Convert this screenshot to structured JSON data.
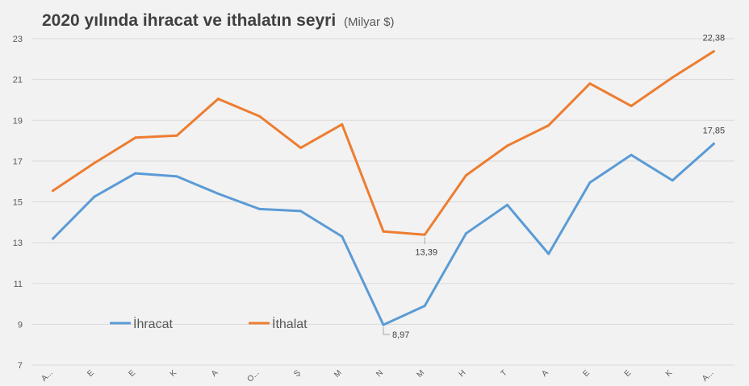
{
  "chart_data": {
    "type": "line",
    "title": "2020 yılında ihracat ve ithalatın seyri",
    "subtitle": "(Milyar $)",
    "categories": [
      "A...",
      "E",
      "E",
      "K",
      "A",
      "O...",
      "Ş",
      "M",
      "N",
      "M",
      "H",
      "T",
      "A",
      "E",
      "E",
      "K",
      "A..."
    ],
    "series": [
      {
        "name": "İhracat",
        "color": "#5b9bd5",
        "values": [
          13.2,
          15.25,
          16.4,
          16.25,
          15.4,
          14.65,
          14.55,
          13.3,
          8.97,
          9.9,
          13.45,
          14.85,
          12.45,
          15.95,
          17.3,
          16.05,
          17.85
        ]
      },
      {
        "name": "İthalat",
        "color": "#ed7d31",
        "values": [
          15.55,
          16.9,
          18.15,
          18.25,
          20.05,
          19.2,
          17.65,
          18.8,
          13.55,
          13.39,
          16.3,
          17.75,
          18.75,
          20.8,
          19.7,
          21.1,
          22.38
        ]
      }
    ],
    "data_labels": [
      {
        "series": 0,
        "index": 8,
        "text": "8,97"
      },
      {
        "series": 0,
        "index": 16,
        "text": "17,85"
      },
      {
        "series": 1,
        "index": 9,
        "text": "13,39"
      },
      {
        "series": 1,
        "index": 16,
        "text": "22,38"
      }
    ],
    "ylim": [
      7,
      23
    ],
    "yticks": [
      7,
      9,
      11,
      13,
      15,
      17,
      19,
      21,
      23
    ],
    "grid": true,
    "legend_position": "lower-left",
    "xlabel": "",
    "ylabel": ""
  }
}
